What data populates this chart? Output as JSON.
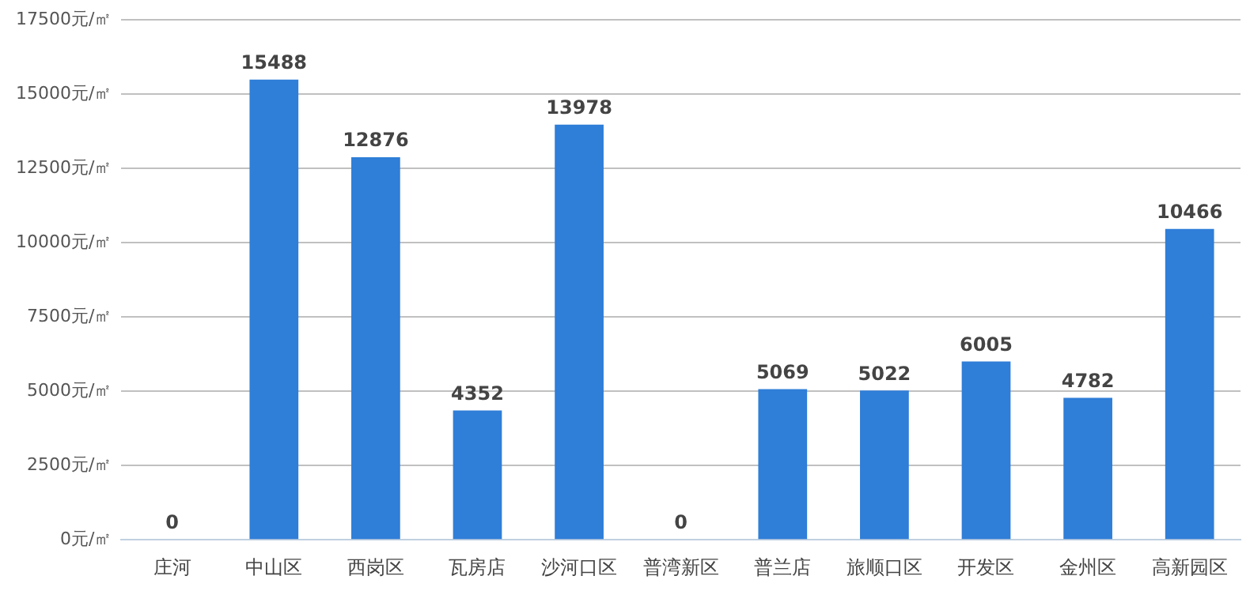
{
  "chart_data": {
    "type": "bar",
    "categories": [
      "庄河",
      "中山区",
      "西岗区",
      "瓦房店",
      "沙河口区",
      "普湾新区",
      "普兰店",
      "旅顺口区",
      "开发区",
      "金州区",
      "高新园区"
    ],
    "values": [
      0,
      15488,
      12876,
      4352,
      13978,
      0,
      5069,
      5022,
      6005,
      4782,
      10466
    ],
    "color": "#2f7ed8",
    "ylim": [
      0,
      17500
    ],
    "yticks": [
      {
        "value": 0,
        "label": "0元/㎡"
      },
      {
        "value": 2500,
        "label": "2500元/㎡"
      },
      {
        "value": 5000,
        "label": "5000元/㎡"
      },
      {
        "value": 7500,
        "label": "7500元/㎡"
      },
      {
        "value": 10000,
        "label": "10000元/㎡"
      },
      {
        "value": 12500,
        "label": "12500元/㎡"
      },
      {
        "value": 15000,
        "label": "15000元/㎡"
      },
      {
        "value": 17500,
        "label": "17500元/㎡"
      }
    ],
    "grid": "y",
    "legend": false,
    "data_labels": true
  }
}
